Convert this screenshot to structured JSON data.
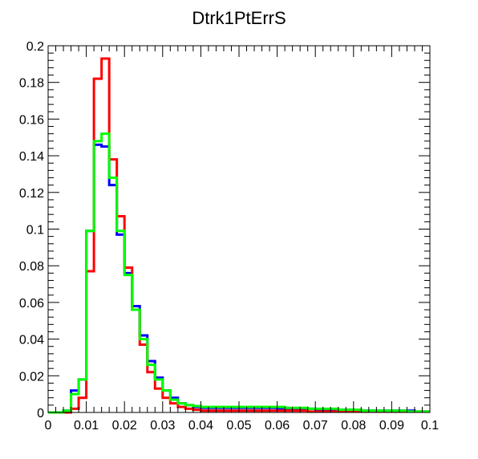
{
  "chart_data": {
    "type": "histogram",
    "title": "Dtrk1PtErrS",
    "xlabel": "",
    "ylabel": "",
    "xlim": [
      0,
      0.1
    ],
    "ylim": [
      0,
      0.2
    ],
    "bin_width": 0.002,
    "x_ticks": [
      "0",
      "0.01",
      "0.02",
      "0.03",
      "0.04",
      "0.05",
      "0.06",
      "0.07",
      "0.08",
      "0.09",
      "0.1"
    ],
    "y_ticks": [
      "0",
      "0.02",
      "0.04",
      "0.06",
      "0.08",
      "0.1",
      "0.12",
      "0.14",
      "0.16",
      "0.18",
      "0.2"
    ],
    "grid": false,
    "series": [
      {
        "color": "#0000ff",
        "values": [
          0,
          0,
          0.001,
          0.012,
          0.018,
          0.099,
          0.146,
          0.145,
          0.124,
          0.097,
          0.076,
          0.058,
          0.042,
          0.028,
          0.019,
          0.012,
          0.008,
          0.005,
          0.004,
          0.003,
          0.0025,
          0.0025,
          0.0025,
          0.0025,
          0.0025,
          0.0025,
          0.0025,
          0.0025,
          0.0025,
          0.0025,
          0.002,
          0.002,
          0.002,
          0.002,
          0.002,
          0.0015,
          0.0015,
          0.0015,
          0.0015,
          0.0015,
          0.001,
          0.001,
          0.001,
          0.001,
          0.001,
          0.001,
          0.001,
          0.001,
          0.0005,
          0.0005
        ]
      },
      {
        "color": "#ff0000",
        "values": [
          0,
          0,
          0,
          0.002,
          0.008,
          0.077,
          0.182,
          0.193,
          0.138,
          0.107,
          0.079,
          0.056,
          0.037,
          0.022,
          0.013,
          0.008,
          0.005,
          0.003,
          0.002,
          0.0015,
          0.001,
          0.001,
          0.001,
          0.001,
          0.001,
          0.001,
          0.001,
          0.001,
          0.001,
          0.001,
          0.001,
          0.001,
          0.001,
          0.001,
          0.0005,
          0.0005,
          0.0005,
          0.0005,
          0.0005,
          0.0005,
          0.0005,
          0.0005,
          0.0005,
          0.0005,
          0.0005,
          0.0005,
          0.0005,
          0.0005,
          0.0005,
          0.0005
        ]
      },
      {
        "color": "#00ff00",
        "values": [
          0,
          0,
          0.001,
          0.01,
          0.018,
          0.099,
          0.148,
          0.152,
          0.128,
          0.099,
          0.075,
          0.056,
          0.04,
          0.026,
          0.018,
          0.012,
          0.007,
          0.005,
          0.004,
          0.0035,
          0.003,
          0.003,
          0.003,
          0.003,
          0.003,
          0.003,
          0.003,
          0.003,
          0.003,
          0.003,
          0.003,
          0.0025,
          0.0025,
          0.0025,
          0.002,
          0.002,
          0.002,
          0.002,
          0.0015,
          0.0015,
          0.0015,
          0.001,
          0.001,
          0.001,
          0.001,
          0.001,
          0.001,
          0.0005,
          0.0005,
          0.0005
        ]
      }
    ]
  }
}
